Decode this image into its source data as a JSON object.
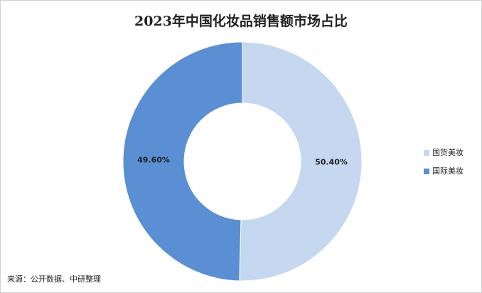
{
  "chart_data": {
    "type": "pie",
    "title": "2023年中国化妆品销售额市场占比",
    "categories": [
      "国货美妆",
      "国际美妆"
    ],
    "values": [
      50.4,
      49.6
    ],
    "value_labels": [
      "50.40%",
      "49.60%"
    ],
    "colors": [
      "#c6d8ef",
      "#5b8fd4"
    ],
    "legend": "right",
    "source": "来源：公开数据、中研整理"
  }
}
